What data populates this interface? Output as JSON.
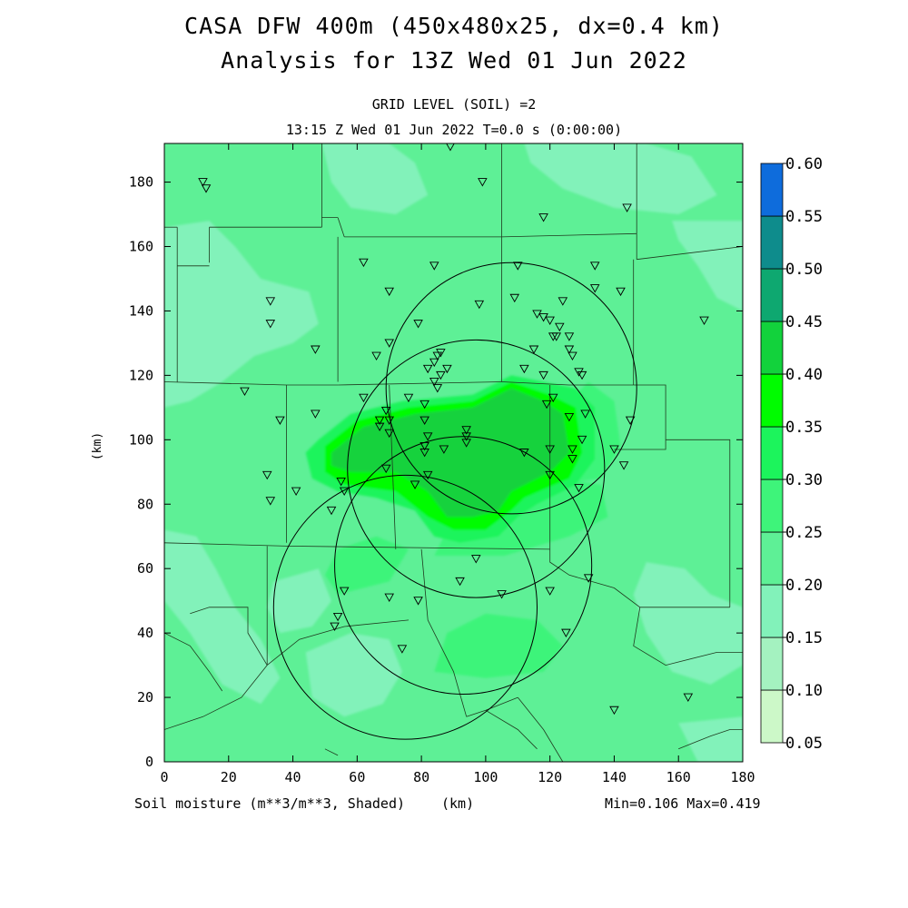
{
  "header": {
    "title_line1": "CASA DFW 400m (450x480x25, dx=0.4 km)",
    "title_line2": "Analysis for 13Z Wed 01 Jun 2022",
    "grid_level": "GRID LEVEL (SOIL) =2",
    "time_line": "13:15 Z Wed 01 Jun 2022    T=0.0 s (0:00:00)"
  },
  "axes": {
    "x_ticks": [
      "0",
      "20",
      "40",
      "60",
      "80",
      "100",
      "120",
      "140",
      "160",
      "180"
    ],
    "y_ticks": [
      "0",
      "20",
      "40",
      "60",
      "80",
      "100",
      "120",
      "140",
      "160",
      "180"
    ],
    "x_range": [
      0,
      180
    ],
    "y_range": [
      0,
      192
    ],
    "ylabel": "(km)",
    "xlabel": "(km)"
  },
  "footer": {
    "variable": "Soil moisture (m**3/m**3, Shaded)",
    "unit": "(km)",
    "minmax": "Min=0.106 Max=0.419"
  },
  "colorbar": {
    "labels": [
      "0.05",
      "0.10",
      "0.15",
      "0.20",
      "0.25",
      "0.30",
      "0.35",
      "0.40",
      "0.45",
      "0.50",
      "0.55",
      "0.60"
    ],
    "colors": [
      "#ccf8c8",
      "#a4f2c0",
      "#82f2ba",
      "#5ef096",
      "#3ef47a",
      "#1cf45c",
      "#00fc00",
      "#12d23c",
      "#0ea870",
      "#0e8c8c",
      "#0e6cdc"
    ]
  },
  "field": {
    "background_color": "#5ef096",
    "region_colors": {
      "c015": "#82f2ba",
      "c025": "#3ef47a",
      "c030": "#1cf45c",
      "c035": "#00fc00",
      "c040": "#12d23c"
    }
  },
  "radar_rings": [
    {
      "cx": 97,
      "cy": 91,
      "r": 40
    },
    {
      "cx": 108,
      "cy": 116,
      "r": 39
    },
    {
      "cx": 75,
      "cy": 48,
      "r": 41
    },
    {
      "cx": 93,
      "cy": 61,
      "r": 40
    }
  ],
  "stations": [
    [
      12,
      180
    ],
    [
      13,
      178
    ],
    [
      89,
      191
    ],
    [
      99,
      180
    ],
    [
      118,
      169
    ],
    [
      144,
      172
    ],
    [
      62,
      155
    ],
    [
      84,
      154
    ],
    [
      110,
      154
    ],
    [
      134,
      154
    ],
    [
      33,
      143
    ],
    [
      33,
      136
    ],
    [
      70,
      146
    ],
    [
      98,
      142
    ],
    [
      109,
      144
    ],
    [
      124,
      143
    ],
    [
      134,
      147
    ],
    [
      142,
      146
    ],
    [
      47,
      128
    ],
    [
      66,
      126
    ],
    [
      70,
      130
    ],
    [
      79,
      136
    ],
    [
      116,
      139
    ],
    [
      118,
      138
    ],
    [
      120,
      137
    ],
    [
      123,
      135
    ],
    [
      121,
      132
    ],
    [
      122,
      132
    ],
    [
      126,
      132
    ],
    [
      126,
      128
    ],
    [
      127,
      126
    ],
    [
      115,
      128
    ],
    [
      168,
      137
    ],
    [
      86,
      127
    ],
    [
      85,
      126
    ],
    [
      84,
      124
    ],
    [
      86,
      120
    ],
    [
      82,
      122
    ],
    [
      85,
      116
    ],
    [
      84,
      118
    ],
    [
      88,
      122
    ],
    [
      112,
      122
    ],
    [
      118,
      120
    ],
    [
      129,
      121
    ],
    [
      130,
      120
    ],
    [
      25,
      115
    ],
    [
      36,
      106
    ],
    [
      47,
      108
    ],
    [
      62,
      113
    ],
    [
      67,
      106
    ],
    [
      67,
      104
    ],
    [
      69,
      109
    ],
    [
      70,
      106
    ],
    [
      70,
      102
    ],
    [
      76,
      113
    ],
    [
      81,
      111
    ],
    [
      81,
      106
    ],
    [
      82,
      101
    ],
    [
      119,
      111
    ],
    [
      121,
      113
    ],
    [
      126,
      107
    ],
    [
      131,
      108
    ],
    [
      127,
      97
    ],
    [
      130,
      100
    ],
    [
      145,
      106
    ],
    [
      140,
      97
    ],
    [
      143,
      92
    ],
    [
      94,
      103
    ],
    [
      94,
      101
    ],
    [
      94,
      99
    ],
    [
      81,
      98
    ],
    [
      81,
      96
    ],
    [
      87,
      97
    ],
    [
      112,
      96
    ],
    [
      120,
      97
    ],
    [
      127,
      94
    ],
    [
      120,
      89
    ],
    [
      129,
      85
    ],
    [
      32,
      89
    ],
    [
      33,
      81
    ],
    [
      41,
      84
    ],
    [
      52,
      78
    ],
    [
      55,
      87
    ],
    [
      56,
      84
    ],
    [
      69,
      91
    ],
    [
      78,
      86
    ],
    [
      82,
      89
    ],
    [
      97,
      63
    ],
    [
      92,
      56
    ],
    [
      105,
      52
    ],
    [
      120,
      53
    ],
    [
      132,
      57
    ],
    [
      56,
      53
    ],
    [
      70,
      51
    ],
    [
      79,
      50
    ],
    [
      54,
      45
    ],
    [
      53,
      42
    ],
    [
      74,
      35
    ],
    [
      125,
      40
    ],
    [
      140,
      16
    ],
    [
      163,
      20
    ]
  ]
}
